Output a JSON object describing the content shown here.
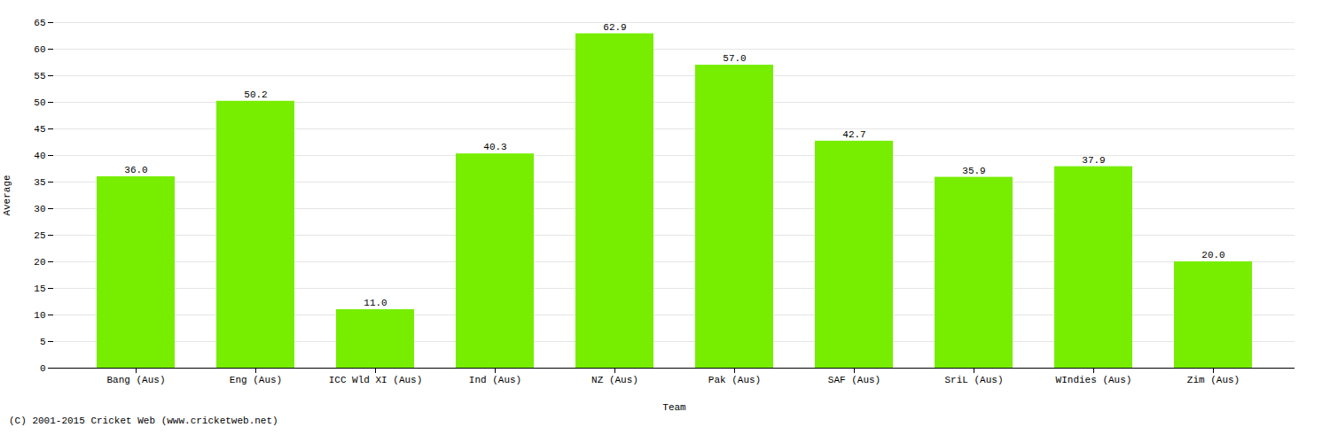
{
  "chart_data": {
    "type": "bar",
    "categories": [
      "Bang (Aus)",
      "Eng (Aus)",
      "ICC Wld XI (Aus)",
      "Ind (Aus)",
      "NZ (Aus)",
      "Pak (Aus)",
      "SAF (Aus)",
      "SriL (Aus)",
      "WIndies (Aus)",
      "Zim (Aus)"
    ],
    "values": [
      36.0,
      50.2,
      11.0,
      40.3,
      62.9,
      57.0,
      42.7,
      35.9,
      37.9,
      20.0
    ],
    "value_labels": [
      "36.0",
      "50.2",
      "11.0",
      "40.3",
      "62.9",
      "57.0",
      "42.7",
      "35.9",
      "37.9",
      "20.0"
    ],
    "data_labels": true,
    "color": "#77ee00",
    "xlabel": "Team",
    "ylabel": "Average",
    "ylim": [
      0,
      65
    ],
    "yticks": [
      0,
      5,
      10,
      15,
      20,
      25,
      30,
      35,
      40,
      45,
      50,
      55,
      60,
      65
    ],
    "grid": true,
    "caption": "(C) 2001-2015 Cricket Web (www.cricketweb.net)"
  }
}
